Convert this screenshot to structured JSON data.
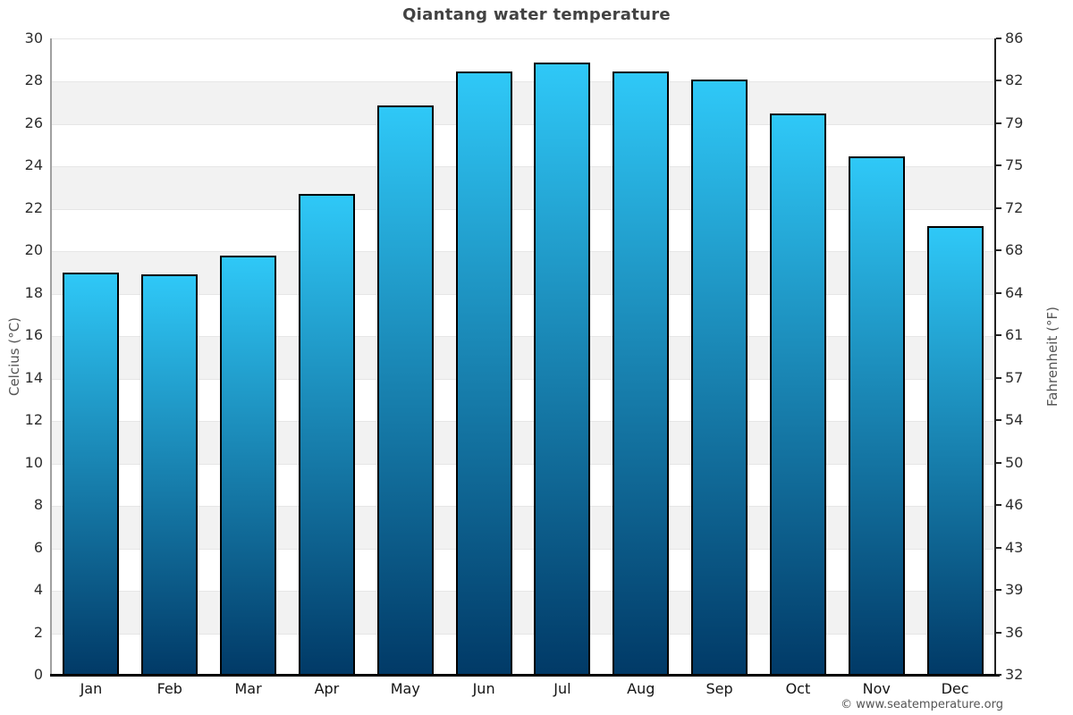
{
  "chart_data": {
    "type": "bar",
    "title": "Qiantang water temperature",
    "categories": [
      "Jan",
      "Feb",
      "Mar",
      "Apr",
      "May",
      "Jun",
      "Jul",
      "Aug",
      "Sep",
      "Oct",
      "Nov",
      "Dec"
    ],
    "values": [
      19.0,
      18.9,
      19.8,
      22.7,
      26.9,
      28.5,
      28.9,
      28.5,
      28.1,
      26.5,
      24.5,
      21.2
    ],
    "value_unit": "°C",
    "ylabel_left": "Celcius (°C)",
    "ylabel_right": "Fahrenheit (°F)",
    "ylim": [
      0,
      30
    ],
    "yticks_celsius": [
      0,
      2,
      4,
      6,
      8,
      10,
      12,
      14,
      16,
      18,
      20,
      22,
      24,
      26,
      28,
      30
    ],
    "yticks_fahrenheit": [
      32,
      36,
      39,
      43,
      46,
      50,
      54,
      57,
      61,
      64,
      68,
      72,
      75,
      79,
      82,
      86
    ],
    "legend": "none",
    "grid": "alternating horizontal bands every 2 units",
    "style": {
      "bar_gradient_top": "#2fc8f7",
      "bar_gradient_bottom": "#013a67",
      "bar_border": "#000000",
      "band_light": "#ffffff",
      "band_dark": "#f2f2f2",
      "gridline": "#e6e6e6",
      "left_axis": "#a0a0a0",
      "right_axis": "#222222",
      "bottom_axis": "#000000",
      "title_color": "#424242",
      "tick_label_color": "#2e2e2e",
      "axis_title_color": "#555555"
    }
  },
  "footer": {
    "credit": "© www.seatemperature.org"
  }
}
